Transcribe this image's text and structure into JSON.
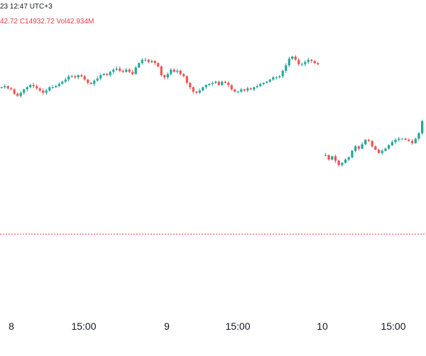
{
  "header": {
    "datetime": "23 12:47 UTC+3",
    "ohlc_prefix": "42.72",
    "close_label": "C14932.72",
    "volume_label": "Vol42.934M"
  },
  "colors": {
    "up": "#26a69a",
    "down": "#ef5350",
    "text": "#131722",
    "price_line": "#f23645"
  },
  "chart_data": {
    "type": "candlestick",
    "title": "",
    "xlabel": "",
    "ylabel": "",
    "x_ticks": [
      "8",
      "15:00",
      "9",
      "15:00",
      "10",
      "15:00"
    ],
    "ylim": [
      14770,
      14990
    ],
    "price_line_value": 14812,
    "grid": false,
    "legend": "none",
    "sessions": [
      {
        "name": "day-8-9",
        "open": 14946,
        "closes": [
          14946,
          14947,
          14945,
          14944,
          14940,
          14938,
          14941,
          14944,
          14946,
          14948,
          14947,
          14945,
          14943,
          14941,
          14943,
          14946,
          14946,
          14947,
          14949,
          14951,
          14953,
          14956,
          14956,
          14955,
          14957,
          14956,
          14953,
          14950,
          14949,
          14952,
          14954,
          14957,
          14958,
          14957,
          14960,
          14962,
          14963,
          14961,
          14960,
          14962,
          14960,
          14958,
          14964,
          14968,
          14971,
          14971,
          14969,
          14970,
          14968,
          14965,
          14957,
          14955,
          14958,
          14962,
          14960,
          14961,
          14958,
          14956,
          14950,
          14946,
          14942,
          14941,
          14943,
          14946,
          14948,
          14949,
          14950,
          14951,
          14948,
          14951,
          14950,
          14948,
          14944,
          14942,
          14942,
          14944,
          14943,
          14945,
          14944,
          14946,
          14947,
          14949,
          14950,
          14951,
          14953,
          14955,
          14955,
          14956,
          14961,
          14966,
          14972,
          14974,
          14971,
          14967,
          14967,
          14969,
          14971,
          14970,
          14968,
          14967
        ]
      },
      {
        "name": "day-10",
        "open": 14884,
        "closes": [
          14884,
          14880,
          14883,
          14879,
          14875,
          14877,
          14880,
          14882,
          14888,
          14892,
          14890,
          14894,
          14898,
          14897,
          14892,
          14889,
          14886,
          14888,
          14890,
          14893,
          14896,
          14898,
          14899,
          14899,
          14898,
          14897,
          14895,
          14899,
          14904,
          14915
        ]
      }
    ]
  }
}
